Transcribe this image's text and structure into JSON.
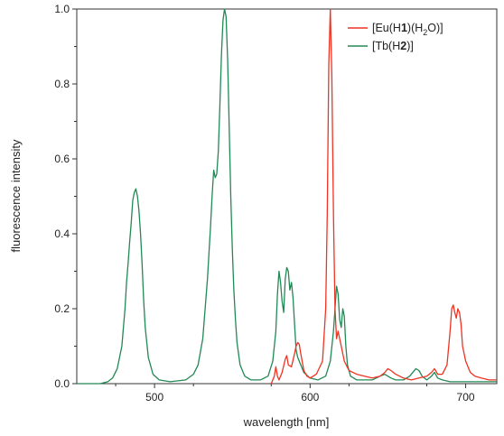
{
  "chart_data": {
    "type": "line",
    "xlabel": "wavelength [nm]",
    "ylabel": "fluorescence intensity",
    "xlim": [
      450,
      720
    ],
    "ylim": [
      0.0,
      1.0
    ],
    "x_ticks": [
      500,
      600,
      700
    ],
    "y_ticks": [
      0.0,
      0.2,
      0.4,
      0.6,
      0.8,
      1.0
    ],
    "x_tick_labels": [
      "500",
      "600",
      "700"
    ],
    "y_tick_labels": [
      "0.0",
      "0.2",
      "0.4",
      "0.6",
      "0.8",
      "1.0"
    ],
    "grid": false,
    "legend_position": "top-right",
    "series": [
      {
        "name": "[Eu(H1)(H2O)]",
        "legend": {
          "pre": "[Eu(H",
          "bold": "1",
          "mid": ")(H",
          "sub": "2",
          "post": "O)]"
        },
        "color": "#ee3322",
        "x": [
          575,
          576,
          577,
          578,
          579,
          580,
          582,
          584,
          585,
          586,
          588,
          590,
          591,
          592,
          593,
          594,
          596,
          598,
          600,
          604,
          608,
          610,
          611,
          612,
          613,
          614,
          615,
          616,
          617,
          618,
          620,
          622,
          625,
          630,
          635,
          640,
          645,
          648,
          650,
          652,
          655,
          660,
          665,
          670,
          675,
          678,
          680,
          682,
          685,
          688,
          690,
          691,
          692,
          693,
          694,
          695,
          696,
          697,
          698,
          700,
          703,
          706,
          710,
          715,
          720
        ],
        "y": [
          0.0,
          0.01,
          0.02,
          0.045,
          0.02,
          0.01,
          0.03,
          0.065,
          0.075,
          0.05,
          0.045,
          0.08,
          0.1,
          0.11,
          0.105,
          0.08,
          0.035,
          0.02,
          0.015,
          0.025,
          0.06,
          0.2,
          0.45,
          0.85,
          1.0,
          0.82,
          0.45,
          0.2,
          0.12,
          0.14,
          0.1,
          0.06,
          0.035,
          0.025,
          0.02,
          0.015,
          0.02,
          0.03,
          0.04,
          0.035,
          0.025,
          0.015,
          0.01,
          0.015,
          0.02,
          0.03,
          0.04,
          0.025,
          0.025,
          0.05,
          0.14,
          0.2,
          0.21,
          0.19,
          0.175,
          0.2,
          0.19,
          0.16,
          0.1,
          0.06,
          0.03,
          0.02,
          0.015,
          0.01,
          0.01
        ]
      },
      {
        "name": "[Tb(H2)]",
        "legend": {
          "pre": "[Tb(H",
          "bold": "2",
          "mid": ")]",
          "sub": "",
          "post": ""
        },
        "color": "#228855",
        "x": [
          450,
          465,
          470,
          473,
          476,
          479,
          481,
          482,
          483,
          484,
          485,
          486,
          487,
          488,
          489,
          490,
          491,
          492,
          493,
          494,
          496,
          499,
          503,
          510,
          520,
          525,
          528,
          531,
          534,
          536,
          537,
          538,
          539,
          540,
          541,
          542,
          543,
          544,
          545,
          546,
          547,
          548,
          549,
          550,
          551,
          552,
          553,
          555,
          558,
          562,
          568,
          573,
          576,
          578,
          579,
          580,
          581,
          582,
          583,
          584,
          585,
          586,
          587,
          588,
          589,
          590,
          591,
          592,
          594,
          596,
          600,
          605,
          610,
          613,
          615,
          616,
          617,
          618,
          619,
          620,
          621,
          622,
          623,
          624,
          626,
          630,
          635,
          640,
          645,
          648,
          650,
          652,
          655,
          660,
          664,
          666,
          668,
          670,
          672,
          675,
          678,
          680,
          682,
          685,
          690,
          700,
          710,
          720
        ],
        "y": [
          0.0,
          0.0,
          0.005,
          0.015,
          0.04,
          0.1,
          0.2,
          0.27,
          0.32,
          0.38,
          0.43,
          0.49,
          0.51,
          0.52,
          0.5,
          0.46,
          0.4,
          0.32,
          0.22,
          0.15,
          0.07,
          0.025,
          0.01,
          0.005,
          0.01,
          0.025,
          0.05,
          0.12,
          0.28,
          0.42,
          0.5,
          0.57,
          0.55,
          0.56,
          0.62,
          0.74,
          0.88,
          0.97,
          1.0,
          0.98,
          0.86,
          0.68,
          0.5,
          0.36,
          0.25,
          0.17,
          0.11,
          0.05,
          0.02,
          0.01,
          0.01,
          0.02,
          0.06,
          0.14,
          0.24,
          0.3,
          0.27,
          0.22,
          0.19,
          0.28,
          0.31,
          0.3,
          0.25,
          0.27,
          0.23,
          0.16,
          0.09,
          0.07,
          0.05,
          0.03,
          0.015,
          0.01,
          0.02,
          0.06,
          0.14,
          0.2,
          0.26,
          0.24,
          0.17,
          0.15,
          0.2,
          0.18,
          0.1,
          0.05,
          0.02,
          0.01,
          0.01,
          0.01,
          0.02,
          0.025,
          0.02,
          0.015,
          0.01,
          0.01,
          0.02,
          0.03,
          0.04,
          0.035,
          0.02,
          0.01,
          0.02,
          0.03,
          0.015,
          0.01,
          0.005,
          0.005,
          0.005,
          0.005
        ]
      }
    ]
  }
}
